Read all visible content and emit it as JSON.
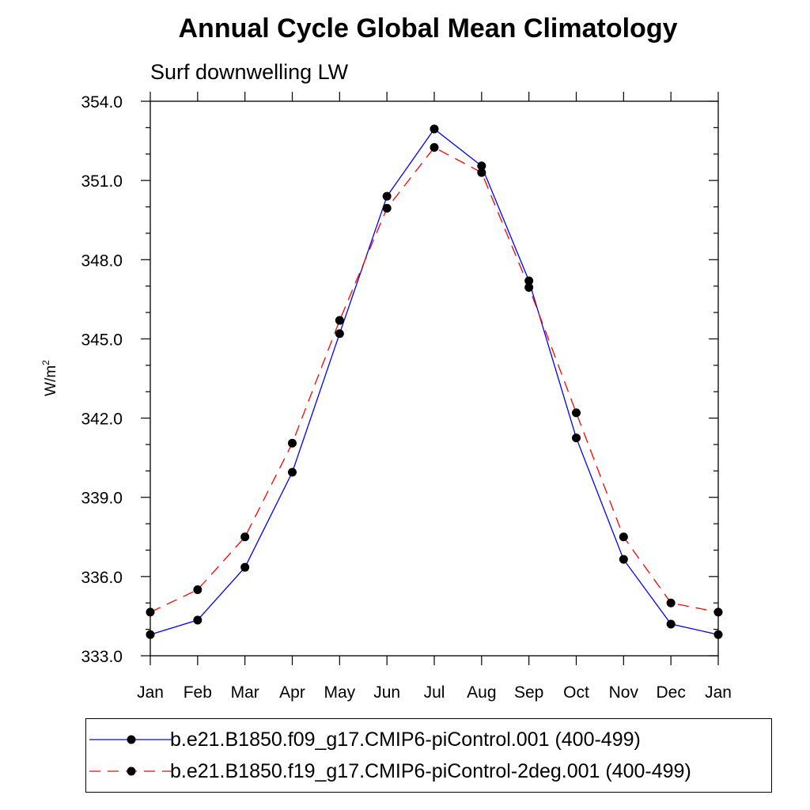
{
  "chart_data": {
    "type": "line",
    "title": "Annual Cycle Global Mean Climatology",
    "subtitle": "Surf downwelling LW",
    "ylabel": "W/m",
    "ylabel_superscript": "2",
    "xlabel": "",
    "categories": [
      "Jan",
      "Feb",
      "Mar",
      "Apr",
      "May",
      "Jun",
      "Jul",
      "Aug",
      "Sep",
      "Oct",
      "Nov",
      "Dec",
      "Jan"
    ],
    "ylim": [
      333.0,
      354.0
    ],
    "yticks": [
      "333.0",
      "336.0",
      "339.0",
      "342.0",
      "345.0",
      "348.0",
      "351.0",
      "354.0"
    ],
    "series": [
      {
        "name": "b.e21.B1850.f09_g17.CMIP6-piControl.001 (400-499)",
        "color": "#0000ff",
        "dash": "solid",
        "values": [
          333.8,
          334.35,
          336.35,
          339.95,
          345.2,
          350.4,
          352.95,
          351.55,
          347.2,
          341.25,
          336.65,
          334.2,
          333.8
        ]
      },
      {
        "name": "b.e21.B1850.f19_g17.CMIP6-piControl-2deg.001 (400-499)",
        "color": "#ff0000",
        "dash": "dashed",
        "values": [
          334.65,
          335.5,
          337.5,
          341.05,
          345.7,
          349.95,
          352.25,
          351.3,
          346.95,
          342.2,
          337.5,
          335.0,
          334.65
        ]
      }
    ],
    "grid": false,
    "legend_position": "bottom"
  }
}
